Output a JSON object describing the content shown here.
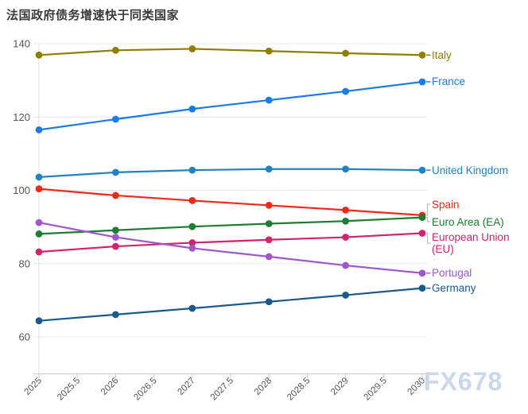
{
  "watermark": "FX678",
  "chart_data": {
    "type": "line",
    "title": "法国政府债务增速快于同类国家",
    "xlabel": "",
    "ylabel": "",
    "x": [
      2025,
      2026,
      2027,
      2028,
      2029,
      2030
    ],
    "x_tick_labels": [
      "2025",
      "2025.5",
      "2026",
      "2026.5",
      "2027",
      "2027.5",
      "2028",
      "2028.5",
      "2029",
      "2029.5",
      "2030"
    ],
    "x_tick_rotation": -45,
    "y_ticks": [
      60,
      80,
      100,
      120,
      140
    ],
    "ylim": [
      50,
      140
    ],
    "grid": "horizontal",
    "legend_position": "line-end-labels-right",
    "axis_color": "#c9c9c9",
    "grid_color": "#e8e8e8",
    "tick_label_color": "#555555",
    "title_color": "#3b3b3b",
    "watermark_color": "#ccd8ea",
    "series": [
      {
        "name": "Italy",
        "color": "#8f7e00",
        "values": [
          136.9,
          138.2,
          138.6,
          138.0,
          137.4,
          136.9
        ]
      },
      {
        "name": "France",
        "color": "#1b7ce8",
        "values": [
          116.5,
          119.4,
          122.2,
          124.6,
          127.0,
          129.6
        ]
      },
      {
        "name": "United Kingdom",
        "color": "#2183c2",
        "values": [
          103.6,
          104.9,
          105.5,
          105.8,
          105.8,
          105.5
        ]
      },
      {
        "name": "Spain",
        "color": "#ee2a1a",
        "values": [
          100.4,
          98.6,
          97.2,
          95.9,
          94.6,
          93.2
        ]
      },
      {
        "name": "Euro Area (EA)",
        "color": "#1e7d32",
        "values": [
          88.1,
          89.1,
          90.1,
          90.9,
          91.6,
          92.6
        ]
      },
      {
        "name": "European Union (EU)",
        "color": "#d0246e",
        "values": [
          83.2,
          84.7,
          85.7,
          86.5,
          87.2,
          88.3
        ]
      },
      {
        "name": "Portugal",
        "color": "#9e58cc",
        "values": [
          91.2,
          87.2,
          84.2,
          81.9,
          79.5,
          77.4
        ]
      },
      {
        "name": "Germany",
        "color": "#1a5a8c",
        "values": [
          64.4,
          66.1,
          67.8,
          69.6,
          71.4,
          73.3
        ]
      }
    ]
  }
}
